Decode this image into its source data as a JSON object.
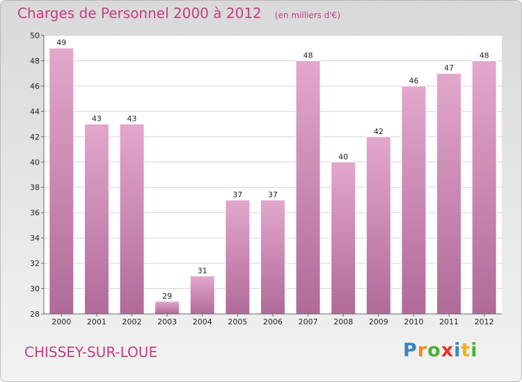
{
  "title": "Charges de Personnel 2000 à 2012",
  "unit": "(en milliers d'€)",
  "city": "CHISSEY-SUR-LOUE",
  "logo": {
    "letters": [
      "P",
      "r",
      "o",
      "x",
      "i",
      "t",
      "i"
    ],
    "colors": [
      "#3b82c4",
      "#f08a1c",
      "#4caf3a",
      "#e8342a",
      "#3b82c4",
      "#f0b21c",
      "#4caf3a"
    ]
  },
  "colors": {
    "title": "#c0407f",
    "bar_top": "#e3a7cc",
    "bar_bottom": "#b06b98"
  },
  "chart_data": {
    "type": "bar",
    "categories": [
      "2000",
      "2001",
      "2002",
      "2003",
      "2004",
      "2005",
      "2006",
      "2007",
      "2008",
      "2009",
      "2010",
      "2011",
      "2012"
    ],
    "values": [
      49,
      43,
      43,
      29,
      31,
      37,
      37,
      48,
      40,
      42,
      46,
      47,
      48
    ],
    "ylim": [
      28,
      50
    ],
    "yticks": [
      28,
      30,
      32,
      34,
      36,
      38,
      40,
      42,
      44,
      46,
      48,
      50
    ],
    "grid": true,
    "title": "Charges de Personnel 2000 à 2012",
    "ylabel": "",
    "xlabel": ""
  }
}
